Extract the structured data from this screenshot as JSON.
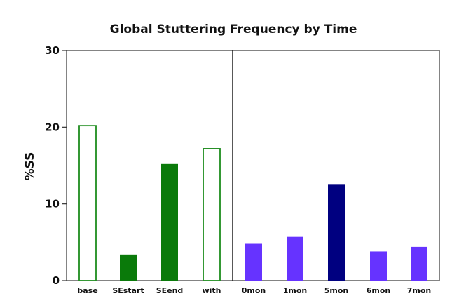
{
  "chart_data": {
    "type": "bar",
    "title": "Global Stuttering Frequency by Time",
    "xlabel": "",
    "ylabel": "%SS",
    "ylim": [
      0,
      30
    ],
    "yticks": [
      0,
      10,
      20,
      30
    ],
    "grid": false,
    "categories": [
      "base",
      "SEstart",
      "SEend",
      "with",
      "0mon",
      "1mon",
      "5mon",
      "6mon",
      "7mon"
    ],
    "values": [
      20.2,
      3.4,
      15.2,
      17.2,
      4.8,
      5.7,
      12.5,
      3.8,
      4.4
    ],
    "bar_styles": [
      "outline",
      "filled",
      "filled",
      "outline",
      "filled",
      "filled",
      "filled",
      "filled",
      "filled"
    ],
    "bar_colors": [
      "#1e8c1e",
      "#0a7a0a",
      "#0a7a0a",
      "#1e8c1e",
      "#6633ff",
      "#6633ff",
      "#000080",
      "#6633ff",
      "#6633ff"
    ],
    "group_divider_after": 3
  }
}
